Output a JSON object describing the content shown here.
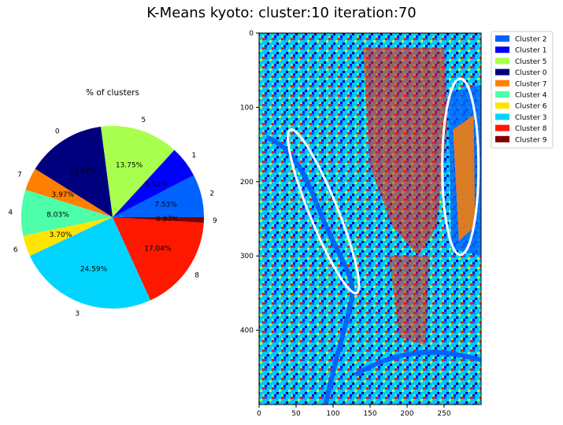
{
  "figure": {
    "title": "K-Means kyoto: cluster:10 iteration:70"
  },
  "colors": {
    "0": "#00007f",
    "1": "#0000ff",
    "2": "#0063ff",
    "3": "#00d4ff",
    "4": "#4dffa9",
    "5": "#a9ff4d",
    "6": "#ffe500",
    "7": "#ff7f00",
    "8": "#ff1800",
    "9": "#7f0000"
  },
  "chart_data": [
    {
      "type": "pie",
      "title": "% of clusters",
      "slices": [
        {
          "label": "2",
          "value": 7.53,
          "pct_text": "7.53%"
        },
        {
          "label": "1",
          "value": 5.52,
          "pct_text": "5.52%"
        },
        {
          "label": "5",
          "value": 13.75,
          "pct_text": "13.75%"
        },
        {
          "label": "0",
          "value": 13.92,
          "pct_text": "13.92%"
        },
        {
          "label": "7",
          "value": 3.97,
          "pct_text": "3.97%"
        },
        {
          "label": "4",
          "value": 8.03,
          "pct_text": "8.03%"
        },
        {
          "label": "6",
          "value": 3.7,
          "pct_text": "3.70%"
        },
        {
          "label": "3",
          "value": 24.59,
          "pct_text": "24.59%"
        },
        {
          "label": "8",
          "value": 17.04,
          "pct_text": "17.04%"
        },
        {
          "label": "9",
          "value": 0.97,
          "pct_text": "0.97%"
        }
      ]
    },
    {
      "type": "heatmap",
      "description_of_content": "cluster label map image",
      "xlim": [
        0,
        300
      ],
      "ylim": [
        500,
        0
      ],
      "xticks": [
        "0",
        "50",
        "100",
        "150",
        "200",
        "250"
      ],
      "yticks": [
        "0",
        "100",
        "200",
        "300",
        "400"
      ],
      "legend": {
        "placement": "upper right, outside",
        "entries": [
          {
            "label": "Cluster 2",
            "cluster": "2"
          },
          {
            "label": "Cluster 1",
            "cluster": "1"
          },
          {
            "label": "Cluster 5",
            "cluster": "5"
          },
          {
            "label": "Cluster 0",
            "cluster": "0"
          },
          {
            "label": "Cluster 7",
            "cluster": "7"
          },
          {
            "label": "Cluster 4",
            "cluster": "4"
          },
          {
            "label": "Cluster 6",
            "cluster": "6"
          },
          {
            "label": "Cluster 3",
            "cluster": "3"
          },
          {
            "label": "Cluster 8",
            "cluster": "8"
          },
          {
            "label": "Cluster 9",
            "cluster": "9"
          }
        ]
      }
    }
  ]
}
